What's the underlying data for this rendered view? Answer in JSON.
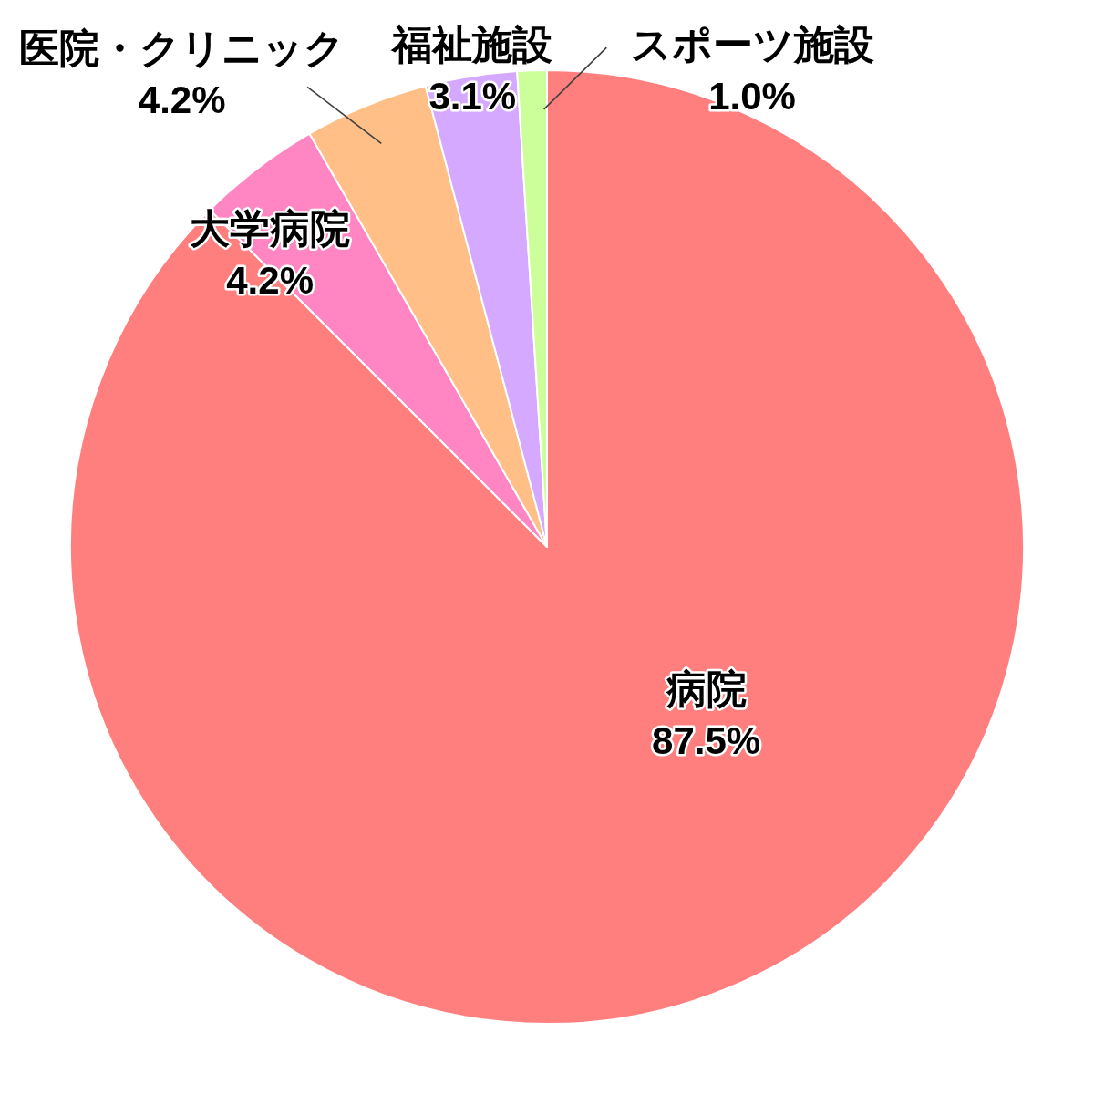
{
  "chart_data": {
    "type": "pie",
    "categories": [
      "病院",
      "大学病院",
      "医院・クリニック",
      "福祉施設",
      "スポーツ施設"
    ],
    "values": [
      87.5,
      4.2,
      4.2,
      3.1,
      1.0
    ],
    "colors": [
      "#ff7f7f",
      "#ff86c2",
      "#ffbf86",
      "#d4a9ff",
      "#ccff99"
    ],
    "value_labels": [
      "87.5%",
      "4.2%",
      "4.2%",
      "3.1%",
      "1.0%"
    ]
  }
}
